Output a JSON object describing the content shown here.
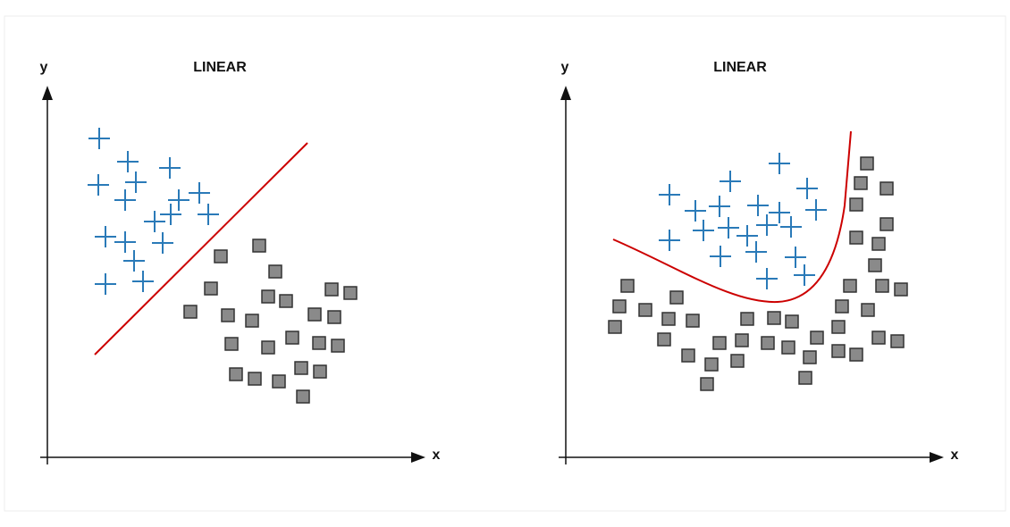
{
  "panels": [
    {
      "title": "LINEAR",
      "y_label": "y",
      "x_label": "x"
    },
    {
      "title": "LINEAR",
      "y_label": "y",
      "x_label": "x"
    }
  ]
}
